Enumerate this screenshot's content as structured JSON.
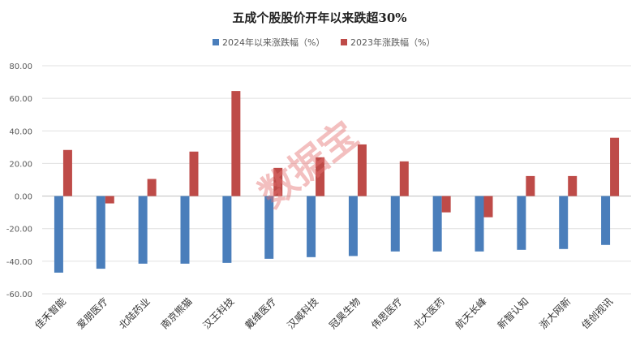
{
  "chart_data": {
    "type": "bar",
    "title": "五成个股股价开年以来跌超30%",
    "xlabel": "",
    "ylabel": "",
    "ylim": [
      -60,
      80
    ],
    "yticks": [
      "80.00",
      "60.00",
      "40.00",
      "20.00",
      "0.00",
      "-20.00",
      "-40.00",
      "-60.00"
    ],
    "grid": true,
    "legend_position": "top",
    "categories": [
      "佳禾智能",
      "爱朋医疗",
      "北陆药业",
      "南京熊猫",
      "汉王科技",
      "戴维医疗",
      "汉威科技",
      "冠昊生物",
      "伟思医疗",
      "北大医药",
      "航天长峰",
      "新智认知",
      "浙大网新",
      "佳创视讯"
    ],
    "series": [
      {
        "name": "2024年以来涨跌幅（%）",
        "color": "#4a7ebb",
        "values": [
          -47.0,
          -44.6,
          -41.5,
          -41.5,
          -41.0,
          -38.5,
          -37.5,
          -36.8,
          -34.0,
          -34.0,
          -34.0,
          -33.0,
          -32.5,
          -30.0
        ]
      },
      {
        "name": "2023年涨跌幅（%）",
        "color": "#be4b48",
        "values": [
          28.3,
          -4.5,
          10.5,
          27.3,
          64.5,
          17.3,
          23.8,
          31.7,
          21.3,
          -10.0,
          -13.0,
          12.3,
          12.3,
          35.8
        ]
      }
    ]
  },
  "watermark": "数据宝"
}
